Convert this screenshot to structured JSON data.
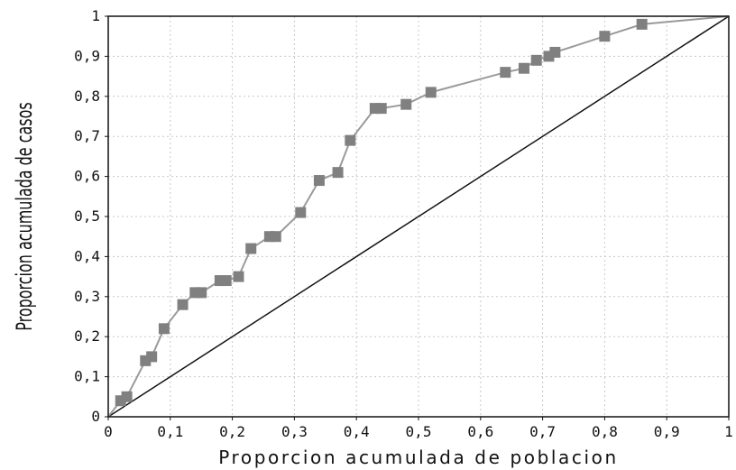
{
  "chart_data": {
    "type": "line",
    "title": "",
    "xlabel": "Proporcion acumulada de poblacion",
    "ylabel": "Proporcion acumulada de casos",
    "xlim": [
      0,
      1
    ],
    "ylim": [
      0,
      1
    ],
    "x_ticks": [
      "0",
      "0,1",
      "0,2",
      "0,3",
      "0,4",
      "0,5",
      "0,6",
      "0,7",
      "0,8",
      "0,9",
      "1"
    ],
    "y_ticks": [
      "0",
      "0,1",
      "0,2",
      "0,3",
      "0,4",
      "0,5",
      "0,6",
      "0,7",
      "0,8",
      "0,9",
      "1"
    ],
    "grid": true,
    "legend": "none",
    "colors": {
      "curve": "#9a9a9a",
      "marker": "#808080",
      "diagonal": "#111111",
      "grid": "#c8c8c8"
    },
    "series": [
      {
        "values": [
          [
            0.0,
            0.0
          ],
          [
            0.02,
            0.04
          ],
          [
            0.03,
            0.05
          ],
          [
            0.06,
            0.14
          ],
          [
            0.07,
            0.15
          ],
          [
            0.09,
            0.22
          ],
          [
            0.12,
            0.28
          ],
          [
            0.14,
            0.31
          ],
          [
            0.15,
            0.31
          ],
          [
            0.18,
            0.34
          ],
          [
            0.19,
            0.34
          ],
          [
            0.21,
            0.35
          ],
          [
            0.23,
            0.42
          ],
          [
            0.26,
            0.45
          ],
          [
            0.27,
            0.45
          ],
          [
            0.31,
            0.51
          ],
          [
            0.34,
            0.59
          ],
          [
            0.37,
            0.61
          ],
          [
            0.39,
            0.69
          ],
          [
            0.43,
            0.77
          ],
          [
            0.44,
            0.77
          ],
          [
            0.48,
            0.78
          ],
          [
            0.52,
            0.81
          ],
          [
            0.64,
            0.86
          ],
          [
            0.67,
            0.87
          ],
          [
            0.69,
            0.89
          ],
          [
            0.71,
            0.9
          ],
          [
            0.72,
            0.91
          ],
          [
            0.8,
            0.95
          ],
          [
            0.86,
            0.98
          ],
          [
            1.0,
            1.0
          ]
        ]
      },
      {
        "values": [
          [
            0,
            0
          ],
          [
            1,
            1
          ]
        ]
      }
    ]
  }
}
